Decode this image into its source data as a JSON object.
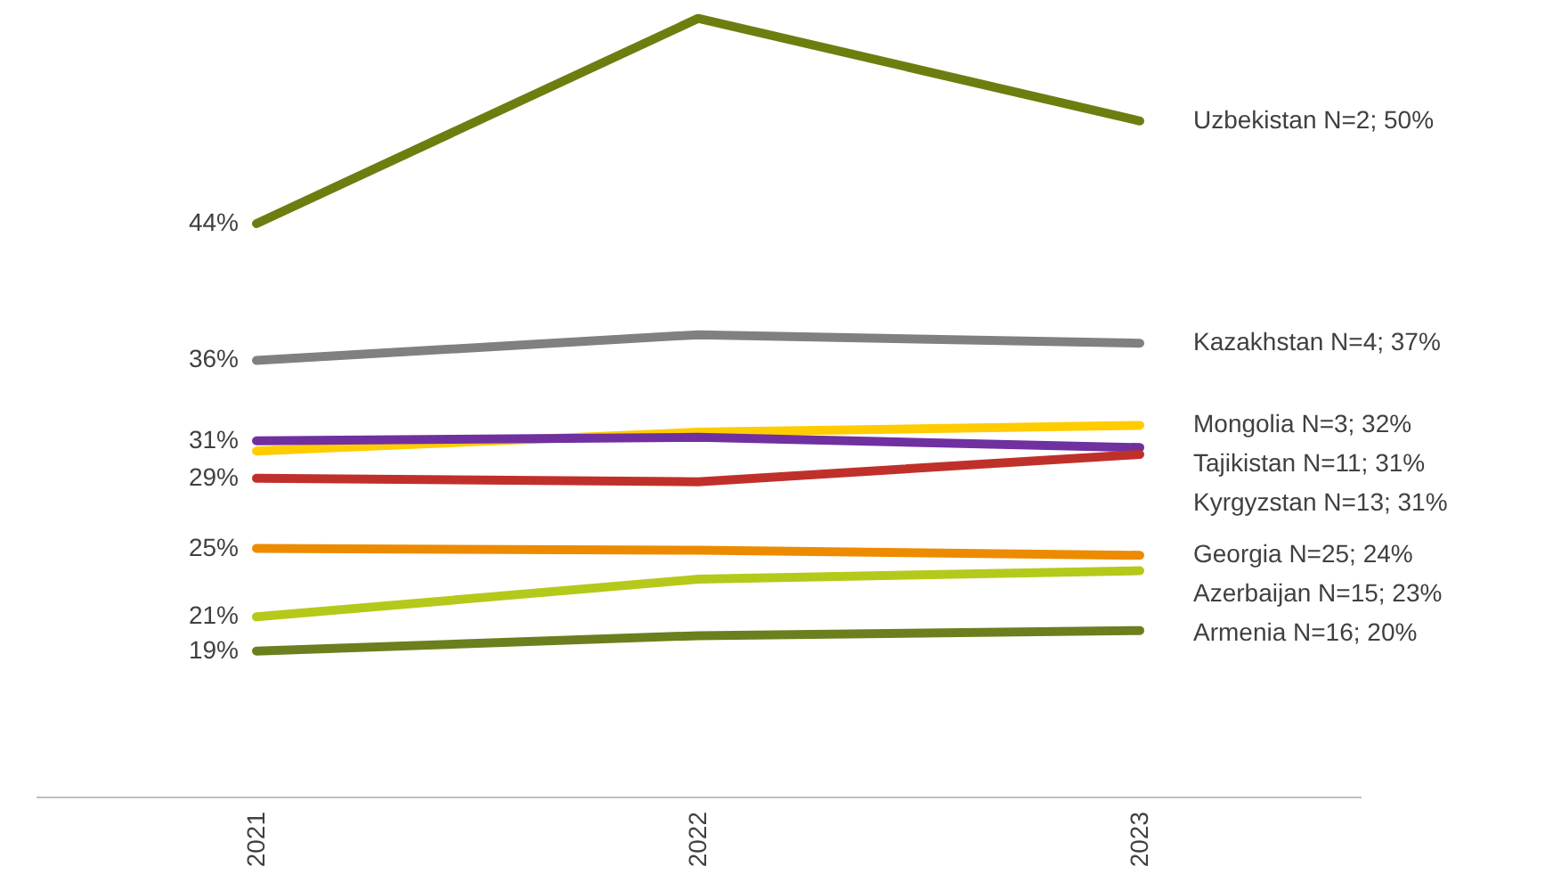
{
  "chart_data": {
    "type": "line",
    "categories": [
      "2021",
      "2022",
      "2023"
    ],
    "tick_labels": "x",
    "grid": false,
    "marker": "none",
    "line_style": "solid",
    "series": [
      {
        "name": "Uzbekistan N=2; 50%",
        "color": "#6e7d0f",
        "values": [
          44,
          56,
          50
        ],
        "value_labels": [
          "44%",
          null,
          null
        ]
      },
      {
        "name": "Kazakhstan  N=4; 37%",
        "color": "#808080",
        "values": [
          36,
          37.5,
          37
        ],
        "value_labels": [
          "36%",
          null,
          null
        ]
      },
      {
        "name": "Mongolia  N=3; 32%",
        "color": "#ffcc00",
        "values": [
          30.7,
          31.8,
          32.2
        ],
        "value_labels": [
          null,
          null,
          null
        ]
      },
      {
        "name": "Tajikistan N=11; 31%",
        "color": "#7030a0",
        "values": [
          31.3,
          31.5,
          30.9
        ],
        "value_labels": [
          "31%",
          null,
          null
        ]
      },
      {
        "name": "Kyrgyzstan N=13; 31%",
        "color": "#c0302b",
        "values": [
          29.1,
          28.9,
          30.5
        ],
        "value_labels": [
          "29%",
          null,
          null
        ]
      },
      {
        "name": "Georgia N=25; 24%",
        "color": "#ed8b00",
        "values": [
          25,
          24.9,
          24.6
        ],
        "value_labels": [
          "25%",
          null,
          null
        ]
      },
      {
        "name": "Azerbaijan N=15; 23%",
        "color": "#b5c91a",
        "values": [
          21,
          23.2,
          23.7
        ],
        "value_labels": [
          "21%",
          null,
          null
        ]
      },
      {
        "name": "Armenia N=16; 20%",
        "color": "#6b7f1e",
        "values": [
          19,
          19.9,
          20.2
        ],
        "value_labels": [
          "19%",
          null,
          null
        ]
      }
    ]
  }
}
